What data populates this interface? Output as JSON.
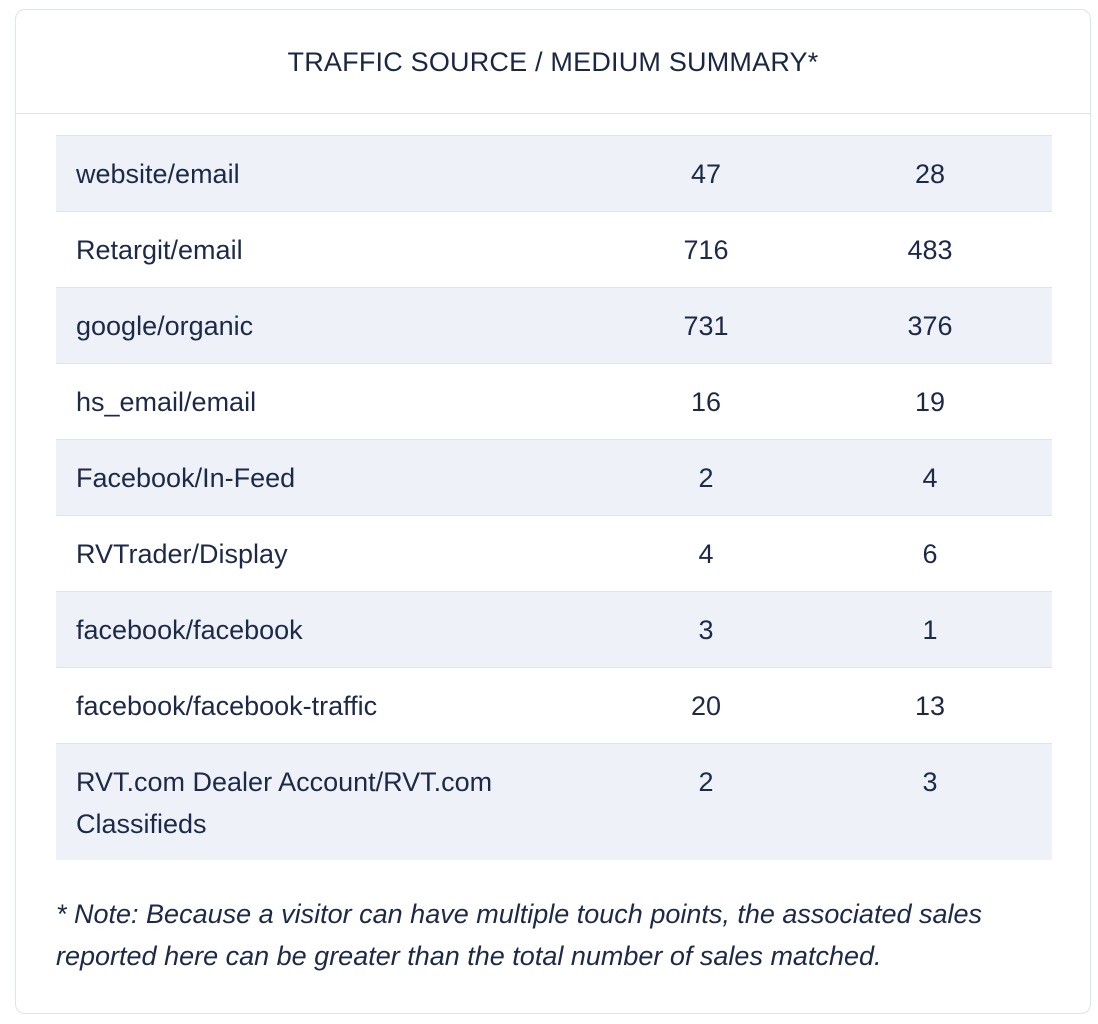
{
  "card": {
    "title": "TRAFFIC SOURCE / MEDIUM SUMMARY*"
  },
  "table": {
    "rows": [
      {
        "name": "website/email",
        "col1": "47",
        "col2": "28"
      },
      {
        "name": "Retargit/email",
        "col1": "716",
        "col2": "483"
      },
      {
        "name": "google/organic",
        "col1": "731",
        "col2": "376"
      },
      {
        "name": "hs_email/email",
        "col1": "16",
        "col2": "19"
      },
      {
        "name": "Facebook/In-Feed",
        "col1": "2",
        "col2": "4"
      },
      {
        "name": "RVTrader/Display",
        "col1": "4",
        "col2": "6"
      },
      {
        "name": "facebook/facebook",
        "col1": "3",
        "col2": "1"
      },
      {
        "name": "facebook/facebook-traffic",
        "col1": "20",
        "col2": "13"
      },
      {
        "name": "RVT.com Dealer Account/RVT.com Classifieds",
        "col1": "2",
        "col2": "3"
      }
    ]
  },
  "note": {
    "text": "* Note: Because a visitor can have multiple touch points, the associated sales reported here can be greater than the total number of sales matched."
  }
}
